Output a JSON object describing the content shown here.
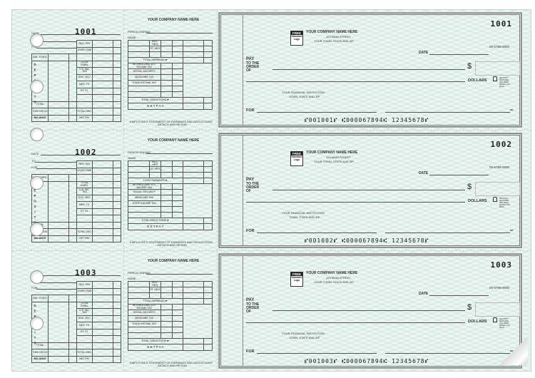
{
  "checks": [
    {
      "number": "1001",
      "micr": "⑈001001⑈ ⑆000067894⑆ 12345678⑈"
    },
    {
      "number": "1002",
      "micr": "⑈001002⑈ ⑆000067894⑆ 12345678⑈"
    },
    {
      "number": "1003",
      "micr": "⑈001003⑈ ⑆000067894⑆ 12345678⑈"
    }
  ],
  "stub": {
    "date": "DATE",
    "to": "TO",
    "for": "FOR",
    "bal_ford": "BAL. FOR'D",
    "deposits": "DEPOSITS",
    "total": "TOTAL",
    "this_check": "THIS CHECK",
    "balance": "BALANCE",
    "right_labels": [
      "REG. PAY",
      "OVER-TIME",
      "",
      "TOTAL EARN.",
      "U.S. INC. TAX",
      "SOC. SEC.",
      "MED. TX.",
      "ST. TX.",
      "",
      "",
      "TOTAL DED.",
      "NET PAY"
    ]
  },
  "statement": {
    "company": "YOUR COMPANY NAME HERE",
    "period_ending": "PERIOD ENDING",
    "name": "NAME",
    "reg_hrs": "REG. HR'S",
    "ot_hrs": "OT. HR'S",
    "total_earnings": "TOTAL EARNINGS ☛",
    "deductions": [
      "WITHHOLDING U.S. INCOME TAX",
      "SOCIAL SECURITY",
      "MEDICARE TAX",
      "STATE INCOME TAX",
      "",
      ""
    ],
    "total_deductions": "TOTAL DEDUCTIONS ☛",
    "net_pay": "N E T   P A Y",
    "footer": "EMPLOYEE'S STATEMENT OF EARNINGS AND DEDUCTIONS - DETACH AND RETAIN"
  },
  "check": {
    "logo_top": "FREE",
    "logo_bottom": "Standard Logo",
    "company": "YOUR COMPANY NAME HERE",
    "street": "123 MAIN STREET",
    "city": "YOUR TOWN, STATE AND ZIP",
    "routing_fraction": "00-6789-0000",
    "date": "DATE",
    "pay": "PAY",
    "to_the_order_of": "TO THE ORDER OF",
    "dollar_sign": "$",
    "dollars": "DOLLARS",
    "lock_icon": "padlock-icon",
    "security_text": "Security Features Included. Details on Back.",
    "bank": "YOUR FINANCIAL INSTITUTION",
    "bank_city": "TOWN, STATE and ZIP",
    "for": "FOR",
    "mp": "MP"
  }
}
